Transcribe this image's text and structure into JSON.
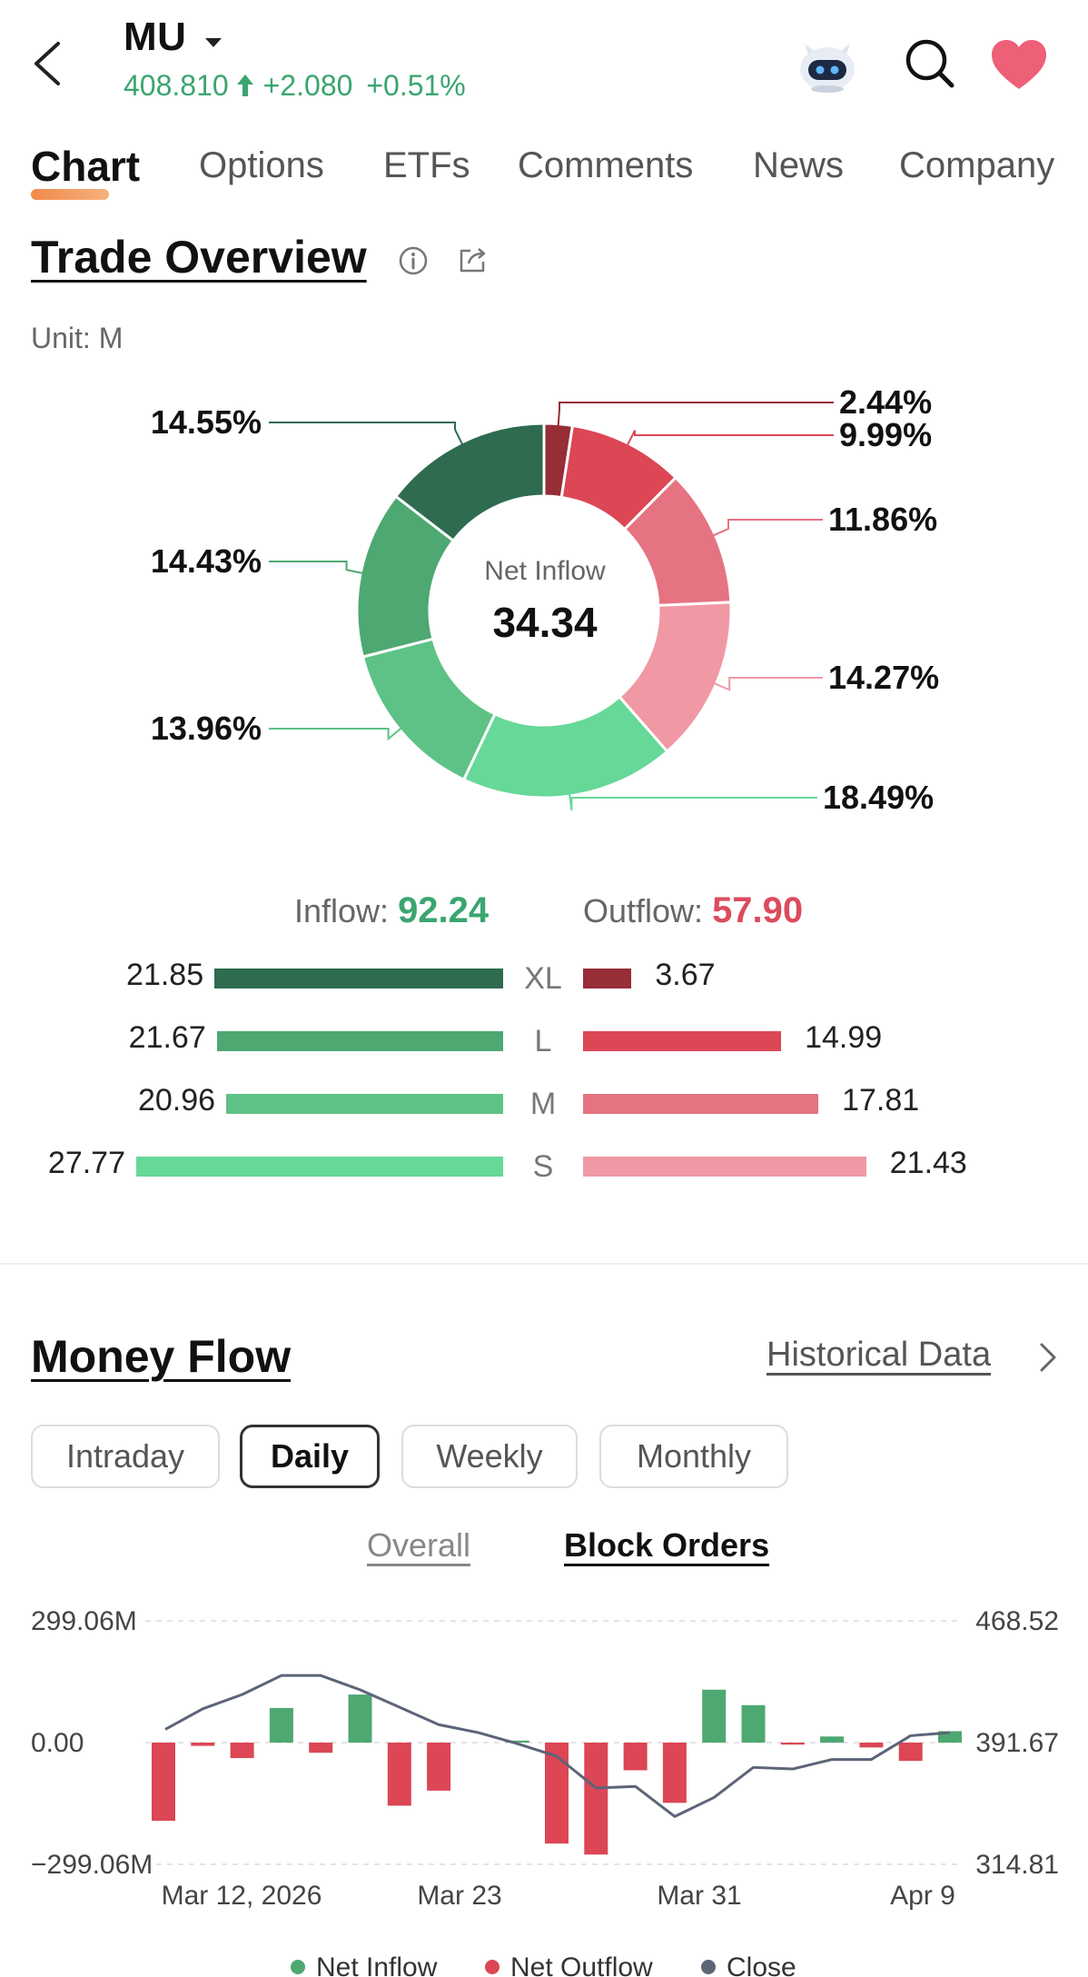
{
  "header": {
    "ticker": "MU",
    "price": "408.810",
    "change": "+2.080",
    "change_pct": "+0.51%"
  },
  "tabs": [
    "Chart",
    "Options",
    "ETFs",
    "Comments",
    "News",
    "Company"
  ],
  "trade_overview": {
    "title": "Trade Overview",
    "unit": "Unit: M",
    "center_label": "Net Inflow",
    "center_value": "34.34",
    "inflow_label": "Inflow:",
    "inflow_value": "92.24",
    "outflow_label": "Outflow:",
    "outflow_value": "57.90",
    "rows": [
      {
        "cat": "XL",
        "inflow": "21.85",
        "outflow": "3.67"
      },
      {
        "cat": "L",
        "inflow": "21.67",
        "outflow": "14.99"
      },
      {
        "cat": "M",
        "inflow": "20.96",
        "outflow": "17.81"
      },
      {
        "cat": "S",
        "inflow": "27.77",
        "outflow": "21.43"
      }
    ]
  },
  "money_flow": {
    "title": "Money Flow",
    "historical_link": "Historical Data",
    "periods": [
      "Intraday",
      "Daily",
      "Weekly",
      "Monthly"
    ],
    "active_period": "Daily",
    "subtabs": [
      "Overall",
      "Block Orders"
    ],
    "active_subtab": "Block Orders"
  },
  "colors": {
    "inflow_xl": "#2e6b4f",
    "inflow_l": "#4ea872",
    "inflow_m": "#5ec286",
    "inflow_s": "#66d898",
    "outflow_xl": "#962d37",
    "outflow_l": "#dc4655",
    "outflow_m": "#e57382",
    "outflow_s": "#f099a5",
    "up_green": "#3ba570",
    "down_red": "#dc4b5d",
    "close_line": "#5c6477"
  },
  "chart_data": [
    {
      "type": "pie",
      "subtype": "donut",
      "title": "",
      "labels": [
        "Outflow XL",
        "Outflow L",
        "Outflow M",
        "Outflow S",
        "Inflow S",
        "Inflow M",
        "Inflow L",
        "Inflow XL"
      ],
      "values": [
        2.44,
        9.99,
        11.86,
        14.27,
        18.49,
        13.96,
        14.43,
        14.55
      ],
      "value_labels": [
        "2.44%",
        "9.99%",
        "11.86%",
        "14.27%",
        "18.49%",
        "13.96%",
        "14.43%",
        "14.55%"
      ]
    },
    {
      "type": "bar",
      "title": "",
      "x": [
        "Mar 12, 2026",
        "Mar 13",
        "Mar 16",
        "Mar 17",
        "Mar 18",
        "Mar 19",
        "Mar 20",
        "Mar 23",
        "Mar 24",
        "Mar 25",
        "Mar 26",
        "Mar 27",
        "Mar 30",
        "Mar 31",
        "Apr 1",
        "Apr 2",
        "Apr 3",
        "Apr 6",
        "Apr 7",
        "Apr 8",
        "Apr 9"
      ],
      "tick_labels": [
        "Mar 12, 2026",
        "Mar 23",
        "Mar 31",
        "Apr 9"
      ],
      "series": [
        {
          "name": "Net Inflow",
          "values": [
            0,
            0,
            0,
            85,
            0,
            118,
            0,
            0,
            0,
            5,
            0,
            0,
            0,
            0,
            130,
            92,
            0,
            15,
            0,
            0,
            28
          ]
        },
        {
          "name": "Net Outflow",
          "values": [
            -192,
            -8,
            -38,
            0,
            -25,
            0,
            -155,
            -118,
            0,
            0,
            -248,
            -275,
            -68,
            -148,
            0,
            0,
            -5,
            0,
            -12,
            -45,
            0
          ]
        },
        {
          "name": "Close",
          "values": [
            400,
            413,
            422,
            434,
            434,
            425,
            414,
            403,
            398,
            391,
            383,
            363,
            364,
            345,
            357,
            376,
            375,
            381,
            381,
            396,
            398
          ]
        }
      ],
      "y_left_ticks": [
        "299.06M",
        "0.00",
        "−299.06M"
      ],
      "y_right_ticks": [
        "468.52",
        "391.67",
        "314.81"
      ],
      "ylim_left": [
        -299.06,
        299.06
      ],
      "ylim_right": [
        314.81,
        468.52
      ]
    }
  ]
}
